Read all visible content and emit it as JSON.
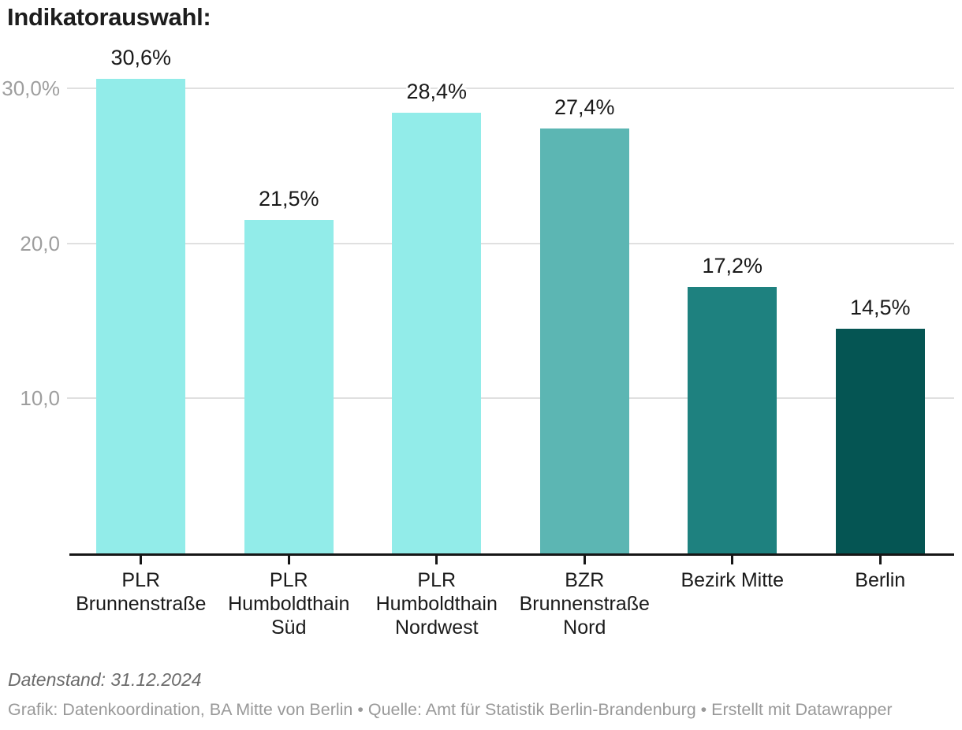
{
  "title": "Indikatorauswahl:",
  "chart_data": {
    "type": "bar",
    "title": "Indikatorauswahl:",
    "categories": [
      "PLR\nBrunnenstraße",
      "PLR\nHumboldthain\nSüd",
      "PLR\nHumboldthain\nNordwest",
      "BZR\nBrunnenstraße\nNord",
      "Bezirk Mitte",
      "Berlin"
    ],
    "values": [
      30.6,
      21.5,
      28.4,
      27.4,
      17.2,
      14.5
    ],
    "value_labels": [
      "30,6%",
      "21,5%",
      "28,4%",
      "27,4%",
      "17,2%",
      "14,5%"
    ],
    "bar_colors": [
      "#92ece9",
      "#92ece9",
      "#92ece9",
      "#5cb6b3",
      "#1e817f",
      "#055553"
    ],
    "y_axis": {
      "ticks": [
        {
          "value": 10,
          "label": "10,0"
        },
        {
          "value": 20,
          "label": "20,0"
        },
        {
          "value": 30,
          "label": "30,0%"
        }
      ],
      "range": [
        0,
        31.5
      ],
      "grid": true
    },
    "xlabel": "",
    "ylabel": "",
    "legend": null
  },
  "footer": {
    "datenstand": "Datenstand: 31.12.2024",
    "attribution": "Grafik: Datenkoordination, BA Mitte von Berlin • Quelle: Amt für Statistik Berlin-Brandenburg • Erstellt mit Datawrapper"
  },
  "style_colors": {
    "grid": "#e0e0e0",
    "axis": "#161616",
    "axis_label": "#9e9e9e",
    "value_label": "#1a1a1a",
    "background": "#ffffff"
  }
}
